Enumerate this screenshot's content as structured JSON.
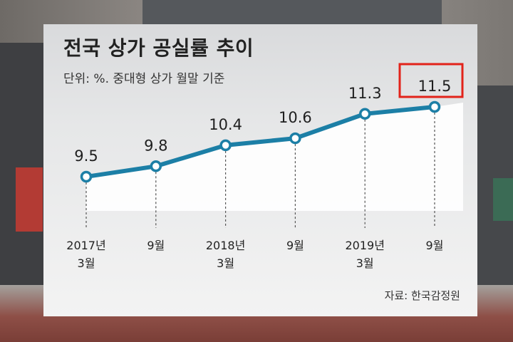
{
  "chart_data": {
    "type": "line",
    "title": "전국 상가 공실률 추이",
    "subtitle": "단위: %. 중대형 상가 월말 기준",
    "source": "자료: 한국감정원",
    "categories": [
      [
        "2017년",
        "3월"
      ],
      [
        "9월"
      ],
      [
        "2018년",
        "3월"
      ],
      [
        "9월"
      ],
      [
        "2019년",
        "3월"
      ],
      [
        "9월"
      ]
    ],
    "series": [
      {
        "values": [
          9.5,
          9.8,
          10.4,
          10.6,
          11.3,
          11.5
        ]
      }
    ],
    "data_labels": [
      "9.5",
      "9.8",
      "10.4",
      "10.6",
      "11.3",
      "11.5"
    ],
    "highlight_index": 5,
    "ylim": [
      9.0,
      12.0
    ],
    "grid": false,
    "line_color": "#1c7fa6",
    "highlight_color": "#e2231a"
  }
}
